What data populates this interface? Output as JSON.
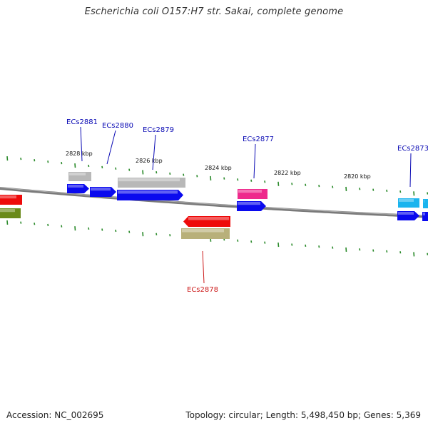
{
  "title": "Escherichia coli O157:H7 str. Sakai, complete genome",
  "footer": {
    "accession": "Accession: NC_002695",
    "stats": "Topology: circular; Length: 5,498,450 bp; Genes: 5,369"
  },
  "colors": {
    "backbone": "#7a7a7a",
    "tick_green": "#2a8a2a",
    "cds_blue": "#0a0aee",
    "gray_feature": "#b8b8b8",
    "magenta_feature": "#ee2a8c",
    "red_feature": "#ee0a0a",
    "olive_feature": "#b8b07a",
    "green_feature": "#6a8a1a",
    "cyan_feature": "#1ab4ee",
    "label_blue": "#0a0ab4",
    "label_red": "#cc1a1a"
  },
  "scale_labels": [
    "2828 kbp",
    "2826 kbp",
    "2824 kbp",
    "2822 kbp",
    "2820 kbp"
  ],
  "gene_labels": [
    {
      "text": "ECs2881",
      "strand": "forward"
    },
    {
      "text": "ECs2880",
      "strand": "forward"
    },
    {
      "text": "ECs2879",
      "strand": "forward"
    },
    {
      "text": "ECs2877",
      "strand": "forward"
    },
    {
      "text": "ECs2873",
      "strand": "forward"
    },
    {
      "text": "ECs2878",
      "strand": "reverse"
    }
  ]
}
